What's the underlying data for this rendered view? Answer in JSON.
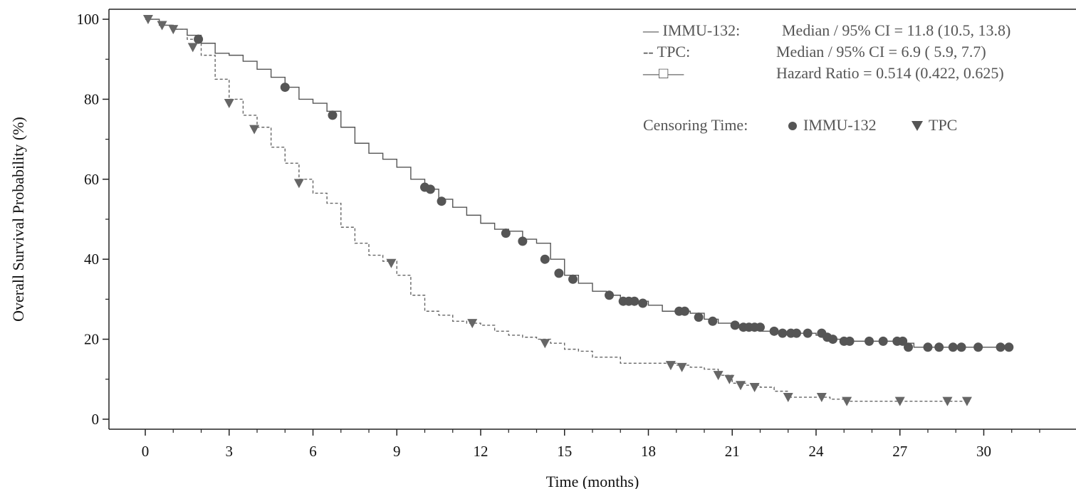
{
  "chart_data": {
    "type": "line",
    "title": "",
    "xlabel": "Time (months)",
    "ylabel": "Overall Survival Probability (%)",
    "xlim": [
      -1.3,
      33.3
    ],
    "ylim": [
      -2.5,
      102.5
    ],
    "xticks": [
      0,
      3,
      6,
      9,
      12,
      15,
      18,
      21,
      24,
      27,
      30
    ],
    "yticks": [
      0,
      20,
      40,
      60,
      80,
      100
    ],
    "grid": false,
    "legend_position": "top-right",
    "colors": {
      "immu": "#555555",
      "tpc": "#666666",
      "axis": "#222222",
      "legend_text": "#555555"
    },
    "legend": {
      "row1_name": "— IMMU-132:",
      "row1_text": "Median / 95% CI = 11.8 (10.5, 13.8)",
      "row2_name": "-- TPC:",
      "row2_text": "Median / 95% CI = 6.9 ( 5.9, 7.7)",
      "row3_name": "—□—",
      "row3_text": "Hazard Ratio = 0.514 (0.422, 0.625)",
      "censor_label": "Censoring Time:",
      "censor_immu": "IMMU-132",
      "censor_tpc": "TPC"
    },
    "series": [
      {
        "key": "immu",
        "style": "solid",
        "marker": "circle",
        "x": [
          0,
          0.5,
          1.0,
          1.5,
          2.0,
          2.5,
          3.0,
          3.5,
          4.0,
          4.5,
          5.0,
          5.5,
          6.0,
          6.5,
          7.0,
          7.5,
          8.0,
          8.5,
          9.0,
          9.5,
          10.0,
          10.5,
          11.0,
          11.5,
          12.0,
          12.5,
          13.0,
          13.5,
          14.0,
          14.5,
          15.0,
          15.5,
          16.0,
          16.5,
          17.0,
          17.5,
          18.0,
          18.5,
          19.0,
          19.5,
          20.0,
          20.5,
          21.0,
          21.5,
          22.0,
          22.5,
          23.0,
          23.5,
          24.0,
          24.5,
          25.0,
          26.0,
          27.0,
          27.5,
          28.0,
          29.0,
          30.0,
          31.0
        ],
        "y": [
          100,
          98.5,
          97.5,
          96,
          94,
          91.5,
          91,
          89.5,
          87.5,
          85.5,
          83,
          80,
          79,
          77,
          73,
          69,
          66.5,
          65,
          63,
          60,
          57.5,
          55,
          53,
          51,
          49,
          47.5,
          47,
          45,
          44,
          40,
          36,
          34,
          32,
          31,
          29.5,
          29.5,
          28.5,
          27,
          27,
          26.5,
          25,
          24,
          23.5,
          23,
          22,
          21.5,
          21.5,
          21.5,
          21,
          20,
          19.5,
          19.5,
          19,
          18,
          18,
          18,
          18,
          18
        ],
        "censor_x": [
          1.9,
          5.0,
          6.7,
          10.0,
          10.2,
          10.6,
          12.9,
          13.5,
          14.3,
          14.8,
          15.3,
          16.6,
          17.1,
          17.3,
          17.5,
          17.8,
          19.1,
          19.3,
          19.8,
          20.3,
          21.1,
          21.4,
          21.6,
          21.8,
          22.0,
          22.5,
          22.8,
          23.1,
          23.3,
          23.7,
          24.2,
          24.4,
          24.6,
          25.0,
          25.2,
          25.9,
          26.4,
          26.9,
          27.1,
          27.3,
          28.0,
          28.4,
          28.9,
          29.2,
          29.8,
          30.6,
          30.9
        ],
        "censor_y": [
          95,
          83,
          76,
          58,
          57.5,
          54.5,
          46.5,
          44.5,
          40,
          36.5,
          35,
          31,
          29.5,
          29.5,
          29.5,
          29,
          27,
          27,
          25.5,
          24.5,
          23.5,
          23,
          23,
          23,
          23,
          22,
          21.5,
          21.5,
          21.5,
          21.5,
          21.5,
          20.5,
          20,
          19.5,
          19.5,
          19.5,
          19.5,
          19.5,
          19.5,
          18,
          18,
          18,
          18,
          18,
          18,
          18,
          18
        ]
      },
      {
        "key": "tpc",
        "style": "dashed",
        "marker": "triangle-down",
        "x": [
          0,
          0.5,
          1.0,
          1.5,
          2.0,
          2.5,
          3.0,
          3.5,
          4.0,
          4.5,
          5.0,
          5.5,
          6.0,
          6.5,
          7.0,
          7.5,
          8.0,
          8.5,
          9.0,
          9.5,
          10.0,
          10.5,
          11.0,
          11.5,
          12.0,
          12.5,
          13.0,
          13.5,
          14.0,
          14.5,
          15.0,
          15.5,
          16.0,
          17.0,
          18.0,
          19.0,
          19.5,
          20.0,
          20.5,
          21.0,
          21.5,
          22.0,
          22.5,
          23.0,
          24.0,
          24.5,
          25.0,
          26.0,
          27.0,
          28.0,
          29.0,
          29.5
        ],
        "y": [
          100,
          98.5,
          97.5,
          95,
          91,
          85,
          80,
          76,
          73,
          68,
          64,
          60,
          56.5,
          54,
          48,
          44,
          41,
          39.5,
          36,
          31,
          27,
          26,
          24.5,
          24,
          23.5,
          22,
          21,
          20.5,
          20,
          19,
          17.5,
          17,
          15.5,
          14,
          14,
          13.5,
          13,
          12.5,
          11,
          9,
          8.5,
          8,
          7,
          5.5,
          5.5,
          5,
          4.5,
          4.5,
          4.5,
          4.5,
          4.5,
          4.5
        ],
        "censor_x": [
          0.1,
          0.6,
          1.0,
          1.7,
          3.0,
          3.9,
          5.5,
          8.8,
          11.7,
          14.3,
          18.8,
          19.2,
          20.5,
          20.9,
          21.3,
          21.8,
          23.0,
          24.2,
          25.1,
          27.0,
          28.7,
          29.4
        ],
        "censor_y": [
          100,
          98.5,
          97.5,
          93,
          79,
          72.5,
          59,
          39,
          24,
          19,
          13.5,
          13,
          11,
          10,
          8.5,
          8,
          5.5,
          5.5,
          4.5,
          4.5,
          4.5,
          4.5
        ]
      }
    ]
  }
}
